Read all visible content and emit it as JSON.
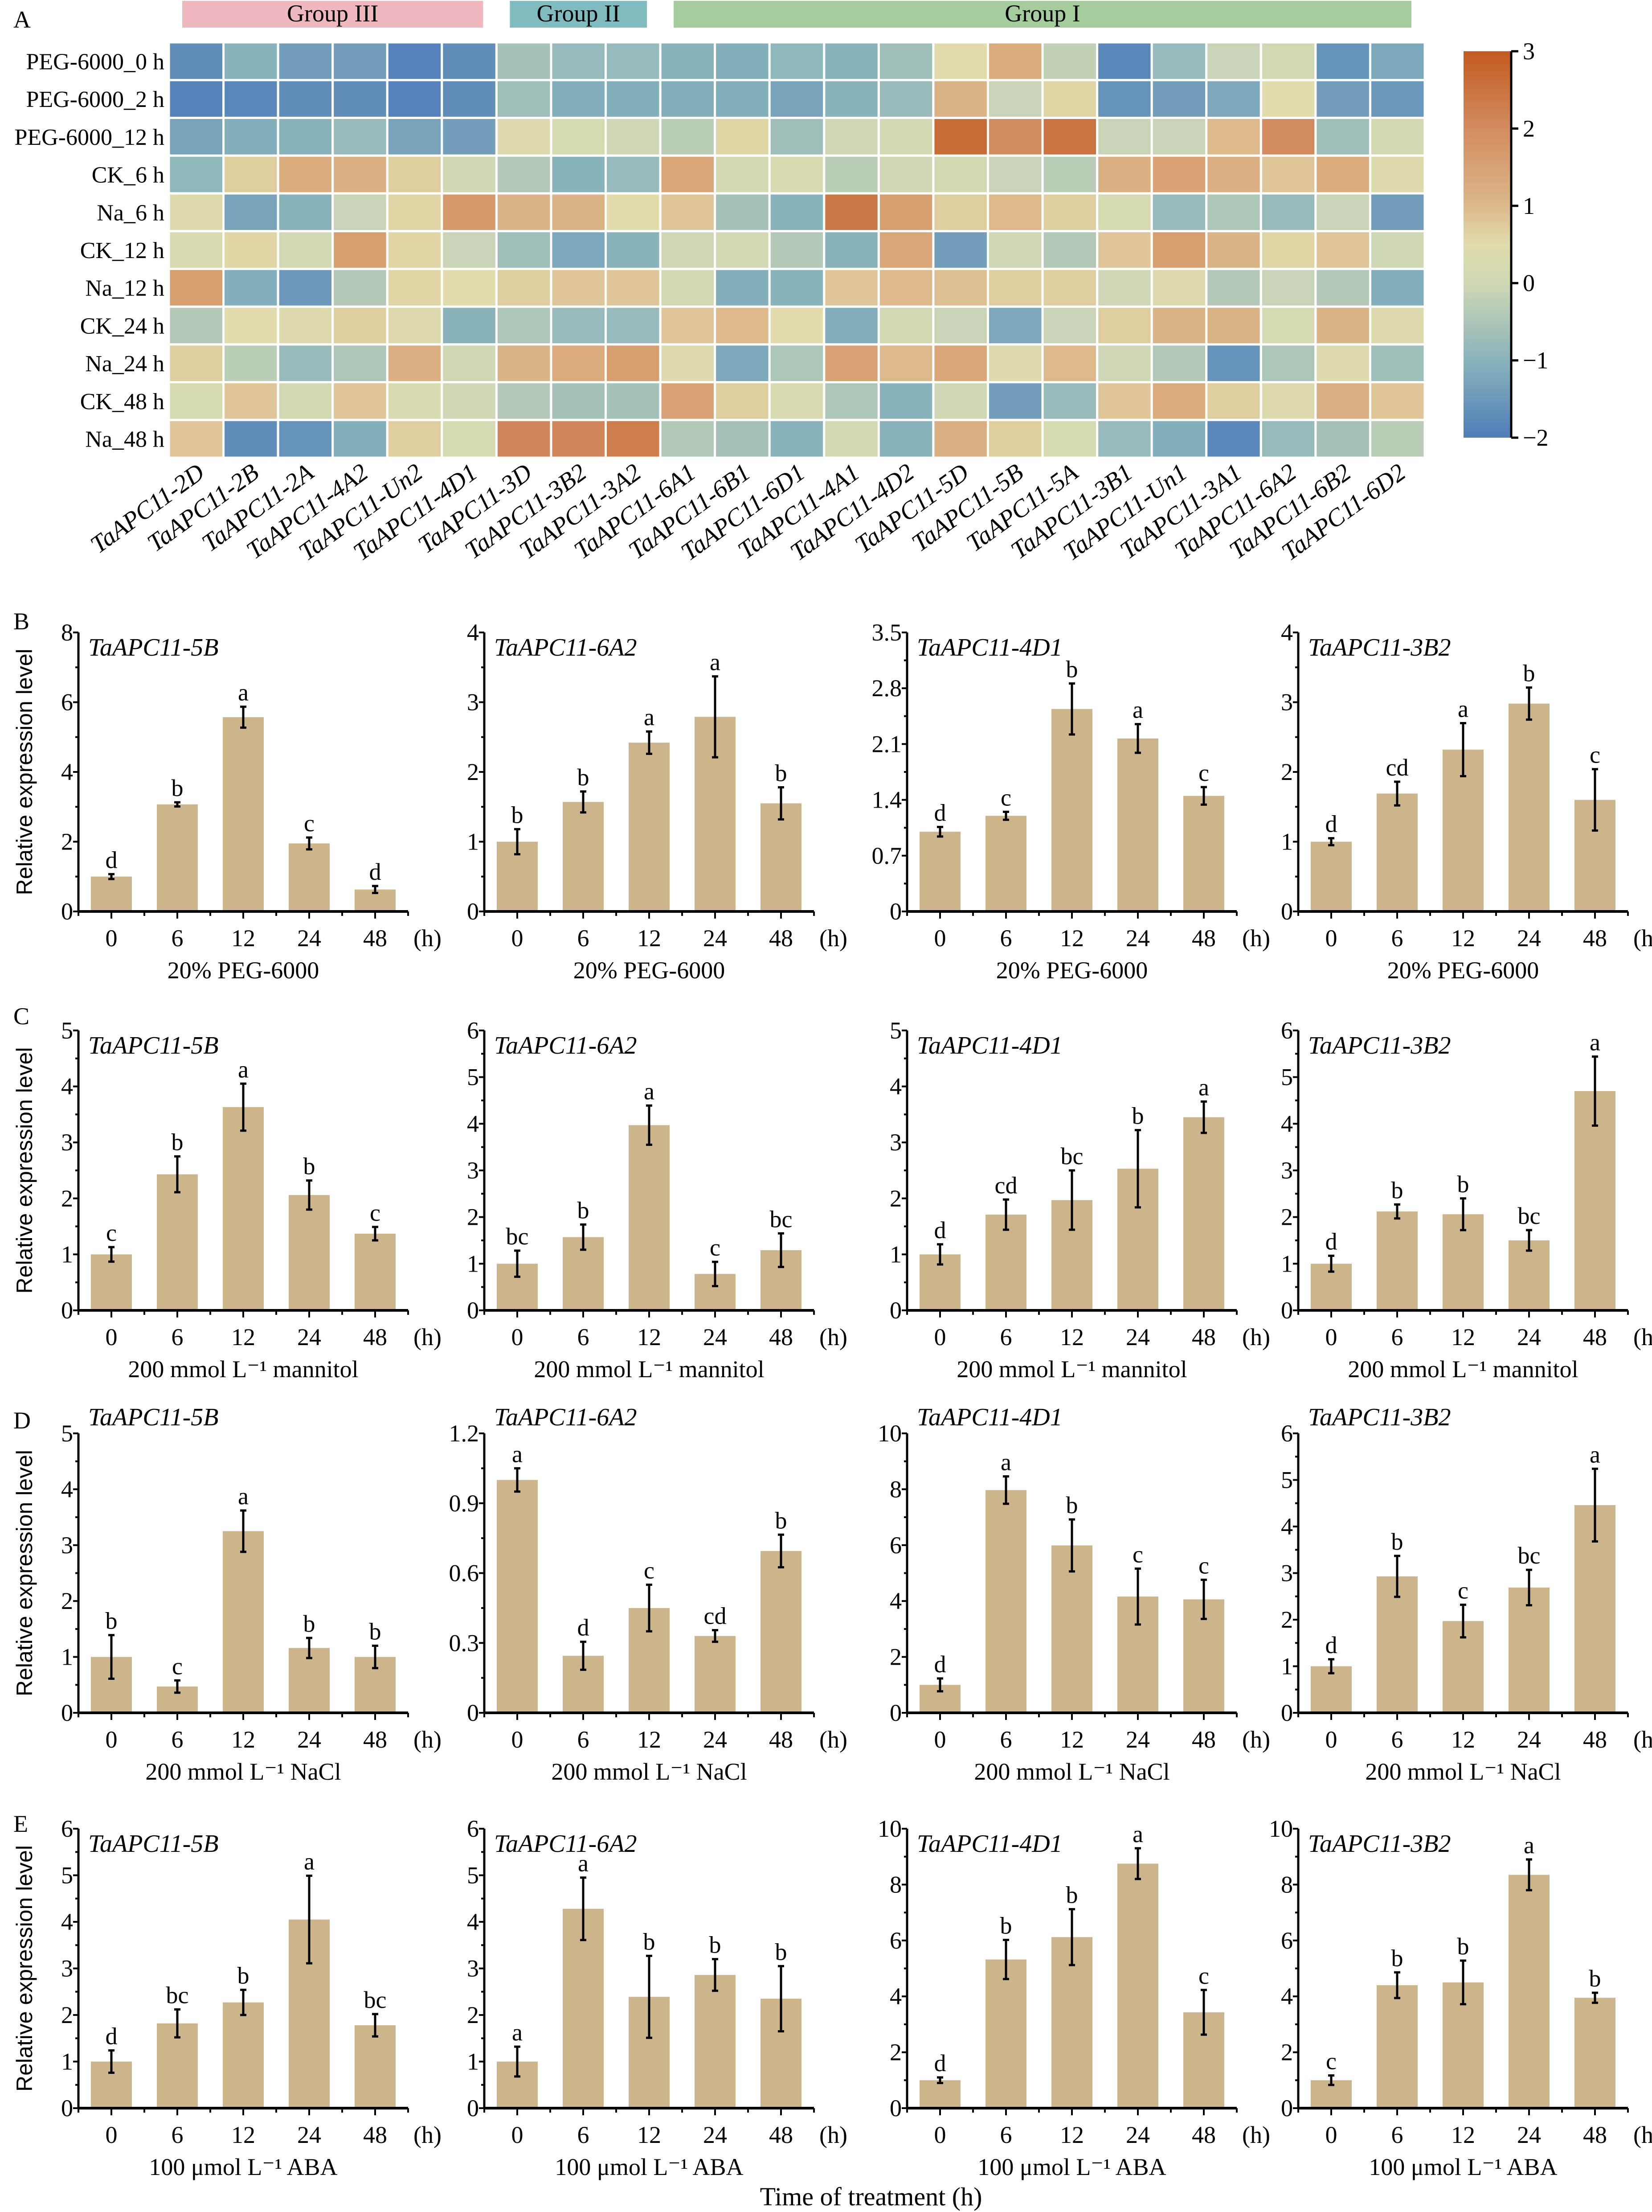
{
  "panel_labels": [
    "A",
    "B",
    "C",
    "D",
    "E"
  ],
  "footer": {
    "xlabel": "Time of treatment (h)"
  },
  "chart_data": [
    {
      "type": "heatmap",
      "rows": [
        "PEG-6000_0 h",
        "PEG-6000_2 h",
        "PEG-6000_12 h",
        "CK_6 h",
        "Na_6 h",
        "CK_12 h",
        "Na_12 h",
        "CK_24 h",
        "Na_24 h",
        "CK_48 h",
        "Na_48 h"
      ],
      "columns": [
        "TaAPC11-2D",
        "TaAPC11-2B",
        "TaAPC11-2A",
        "TaAPC11-4A2",
        "TaAPC11-Un2",
        "TaAPC11-4D1",
        "TaAPC11-3D",
        "TaAPC11-3B2",
        "TaAPC11-3A2",
        "TaAPC11-6A1",
        "TaAPC11-6B1",
        "TaAPC11-6D1",
        "TaAPC11-4A1",
        "TaAPC11-4D2",
        "TaAPC11-5D",
        "TaAPC11-5B",
        "TaAPC11-5A",
        "TaAPC11-3B1",
        "TaAPC11-Un1",
        "TaAPC11-3A1",
        "TaAPC11-6A2",
        "TaAPC11-6B2",
        "TaAPC11-6D2"
      ],
      "values": [
        [
          -1.7,
          -1.0,
          -1.4,
          -1.4,
          -1.9,
          -1.7,
          -0.6,
          -0.8,
          -0.8,
          -1.0,
          -1.1,
          -0.9,
          -1.0,
          -0.7,
          0.5,
          1.3,
          -0.2,
          -1.8,
          -0.8,
          -0.1,
          0.1,
          -1.6,
          -1.2
        ],
        [
          -1.9,
          -1.8,
          -1.7,
          -1.7,
          -1.9,
          -1.7,
          -0.7,
          -1.1,
          -1.1,
          -1.1,
          -1.1,
          -1.3,
          -1.0,
          -0.8,
          1.1,
          -0.1,
          0.6,
          -1.6,
          -1.4,
          -1.2,
          0.5,
          -1.4,
          -1.5
        ],
        [
          -1.3,
          -1.1,
          -1.0,
          -0.8,
          -1.3,
          -1.4,
          0.4,
          0.2,
          0.0,
          -0.3,
          0.6,
          -0.7,
          0.0,
          0.1,
          2.6,
          2.0,
          2.5,
          -0.1,
          -0.1,
          1.0,
          2.0,
          -0.7,
          0.1
        ],
        [
          -0.9,
          0.7,
          1.3,
          1.2,
          0.7,
          0.0,
          -0.4,
          -1.0,
          -0.8,
          1.4,
          0.1,
          0.3,
          -0.3,
          0.0,
          0.1,
          -0.1,
          -0.3,
          1.2,
          1.5,
          1.2,
          0.8,
          1.3,
          0.4
        ],
        [
          0.4,
          -1.3,
          -1.0,
          -0.1,
          0.6,
          1.7,
          1.1,
          1.1,
          0.5,
          0.8,
          -0.6,
          -1.0,
          2.4,
          1.6,
          0.7,
          1.0,
          0.7,
          0.2,
          -0.8,
          -0.5,
          -0.8,
          -0.1,
          -1.4
        ],
        [
          0.3,
          0.6,
          0.1,
          1.6,
          0.6,
          -0.1,
          -0.7,
          -1.2,
          -1.0,
          0.0,
          0.1,
          -0.4,
          -1.0,
          1.4,
          -1.4,
          0.0,
          -0.4,
          0.8,
          1.6,
          1.1,
          0.6,
          0.8,
          0.0
        ],
        [
          1.6,
          -1.1,
          -1.5,
          -0.4,
          0.6,
          0.5,
          0.7,
          0.8,
          0.8,
          0.1,
          -1.1,
          -1.0,
          0.8,
          1.0,
          0.9,
          0.7,
          0.7,
          0.0,
          0.4,
          -0.4,
          -0.1,
          -0.4,
          -1.1
        ],
        [
          -0.4,
          0.5,
          0.4,
          0.7,
          0.4,
          -1.0,
          -0.5,
          -0.8,
          -0.8,
          0.8,
          1.0,
          0.5,
          -1.1,
          0.1,
          -0.1,
          -1.2,
          -0.1,
          0.7,
          1.1,
          1.1,
          0.2,
          1.1,
          0.4
        ],
        [
          0.7,
          -0.3,
          -0.8,
          -0.5,
          1.2,
          0.0,
          1.1,
          1.3,
          1.6,
          0.4,
          -1.2,
          -0.5,
          1.5,
          1.0,
          1.4,
          0.4,
          1.0,
          0.0,
          -0.4,
          -1.6,
          -0.5,
          0.4,
          -0.7
        ],
        [
          0.2,
          0.8,
          0.1,
          0.8,
          0.3,
          0.0,
          -0.4,
          -0.6,
          -0.6,
          1.5,
          0.7,
          0.3,
          -0.5,
          -1.0,
          0.0,
          -1.4,
          -0.8,
          0.8,
          1.3,
          0.7,
          0.4,
          1.2,
          0.8
        ],
        [
          0.8,
          -1.7,
          -1.6,
          -1.1,
          0.7,
          0.2,
          2.1,
          2.1,
          2.3,
          -0.4,
          -0.6,
          -1.0,
          0.1,
          -1.0,
          1.2,
          0.7,
          0.2,
          -0.8,
          -1.1,
          -1.8,
          -0.8,
          -0.6,
          -0.3
        ]
      ],
      "groups": [
        {
          "name": "Group III",
          "first_column": "TaAPC11-2D",
          "last_column": "TaAPC11-4D1",
          "color": "#efb8bf"
        },
        {
          "name": "Group II",
          "first_column": "TaAPC11-3D",
          "last_column": "TaAPC11-3A2",
          "color": "#7fbbbf"
        },
        {
          "name": "Group I",
          "first_column": "TaAPC11-6A1",
          "last_column": "TaAPC11-6D2",
          "color": "#a5cc9c"
        }
      ],
      "colorbar": {
        "range": [
          -2,
          3
        ],
        "ticks": [
          "3",
          "2",
          "1",
          "0",
          "−1",
          "−2"
        ],
        "colors": [
          "#4f7dba",
          "#89b3bb",
          "#cfd8b4",
          "#e0dcac",
          "#dcb88a",
          "#d38c5f",
          "#c25a20"
        ]
      }
    },
    {
      "type": "bar",
      "panel": "B",
      "title": "TaAPC11-5B",
      "ylabel": "Relative expression level",
      "xlabel": "20% PEG-6000",
      "unit": "(h)",
      "categories": [
        "0",
        "6",
        "12",
        "24",
        "48"
      ],
      "values": [
        1.0,
        3.07,
        5.57,
        1.95,
        0.63
      ],
      "errors": [
        0.07,
        0.06,
        0.3,
        0.17,
        0.1
      ],
      "letters": [
        "d",
        "b",
        "a",
        "c",
        "d"
      ],
      "ylim": [
        0,
        8
      ],
      "yticks": [
        "0",
        "2",
        "4",
        "6",
        "8"
      ]
    },
    {
      "type": "bar",
      "panel": "B",
      "title": "TaAPC11-6A2",
      "xlabel": "20% PEG-6000",
      "unit": "(h)",
      "categories": [
        "0",
        "6",
        "12",
        "24",
        "48"
      ],
      "values": [
        1.0,
        1.57,
        2.42,
        2.79,
        1.55
      ],
      "errors": [
        0.18,
        0.15,
        0.16,
        0.58,
        0.23
      ],
      "letters": [
        "b",
        "b",
        "a",
        "a",
        "b"
      ],
      "ylim": [
        0,
        4
      ],
      "yticks": [
        "0",
        "1",
        "2",
        "3",
        "4"
      ]
    },
    {
      "type": "bar",
      "panel": "B",
      "title": "TaAPC11-4D1",
      "xlabel": "20% PEG-6000",
      "unit": "(h)",
      "categories": [
        "0",
        "6",
        "12",
        "24",
        "48"
      ],
      "values": [
        1.0,
        1.2,
        2.54,
        2.17,
        1.45
      ],
      "errors": [
        0.06,
        0.05,
        0.32,
        0.18,
        0.11
      ],
      "letters": [
        "d",
        "c",
        "b",
        "a",
        "c"
      ],
      "ylim": [
        0,
        3.5
      ],
      "yticks": [
        "0",
        "0.7",
        "1.4",
        "2.1",
        "2.8",
        "3.5"
      ]
    },
    {
      "type": "bar",
      "panel": "B",
      "title": "TaAPC11-3B2",
      "xlabel": "20% PEG-6000",
      "unit": "(h)",
      "categories": [
        "0",
        "6",
        "12",
        "24",
        "48"
      ],
      "values": [
        1.0,
        1.69,
        2.32,
        2.98,
        1.6
      ],
      "errors": [
        0.05,
        0.17,
        0.38,
        0.23,
        0.44
      ],
      "letters": [
        "d",
        "cd",
        "a",
        "b",
        "c"
      ],
      "ylim": [
        0,
        4
      ],
      "yticks": [
        "0",
        "1",
        "2",
        "3",
        "4"
      ]
    },
    {
      "type": "bar",
      "panel": "C",
      "title": "TaAPC11-5B",
      "ylabel": "Relative expression level",
      "xlabel": "200 mmol L⁻¹ mannitol",
      "unit": "(h)",
      "categories": [
        "0",
        "6",
        "12",
        "24",
        "48"
      ],
      "values": [
        1.0,
        2.43,
        3.63,
        2.06,
        1.37
      ],
      "errors": [
        0.13,
        0.32,
        0.42,
        0.26,
        0.12
      ],
      "letters": [
        "c",
        "b",
        "a",
        "b",
        "c"
      ],
      "ylim": [
        0,
        5
      ],
      "yticks": [
        "0",
        "1",
        "2",
        "3",
        "4",
        "5"
      ]
    },
    {
      "type": "bar",
      "panel": "C",
      "title": "TaAPC11-6A2",
      "xlabel": "200 mmol L⁻¹ mannitol",
      "unit": "(h)",
      "categories": [
        "0",
        "6",
        "12",
        "24",
        "48"
      ],
      "values": [
        1.0,
        1.57,
        3.97,
        0.78,
        1.29
      ],
      "errors": [
        0.28,
        0.27,
        0.42,
        0.26,
        0.36
      ],
      "letters": [
        "bc",
        "b",
        "a",
        "c",
        "bc"
      ],
      "ylim": [
        0,
        6
      ],
      "yticks": [
        "0",
        "1",
        "2",
        "3",
        "4",
        "5",
        "6"
      ]
    },
    {
      "type": "bar",
      "panel": "C",
      "title": "TaAPC11-4D1",
      "xlabel": "200 mmol L⁻¹ mannitol",
      "unit": "(h)",
      "categories": [
        "0",
        "6",
        "12",
        "24",
        "48"
      ],
      "values": [
        1.0,
        1.71,
        1.97,
        2.53,
        3.45
      ],
      "errors": [
        0.18,
        0.27,
        0.53,
        0.69,
        0.28
      ],
      "letters": [
        "d",
        "cd",
        "bc",
        "b",
        "a"
      ],
      "ylim": [
        0,
        5
      ],
      "yticks": [
        "0",
        "1",
        "2",
        "3",
        "4",
        "5"
      ]
    },
    {
      "type": "bar",
      "panel": "C",
      "title": "TaAPC11-3B2",
      "xlabel": "200 mmol L⁻¹ mannitol",
      "unit": "(h)",
      "categories": [
        "0",
        "6",
        "12",
        "24",
        "48"
      ],
      "values": [
        1.0,
        2.12,
        2.06,
        1.5,
        4.7
      ],
      "errors": [
        0.17,
        0.15,
        0.34,
        0.22,
        0.74
      ],
      "letters": [
        "d",
        "b",
        "b",
        "bc",
        "a"
      ],
      "ylim": [
        0,
        6
      ],
      "yticks": [
        "0",
        "1",
        "2",
        "3",
        "4",
        "5",
        "6"
      ]
    },
    {
      "type": "bar",
      "panel": "D",
      "title": "TaAPC11-5B",
      "ylabel": "Relative expression level",
      "xlabel": "200 mmol L⁻¹ NaCl",
      "unit": "(h)",
      "categories": [
        "0",
        "6",
        "12",
        "24",
        "48"
      ],
      "values": [
        1.0,
        0.47,
        3.25,
        1.16,
        1.0
      ],
      "errors": [
        0.39,
        0.11,
        0.37,
        0.18,
        0.2
      ],
      "letters": [
        "b",
        "c",
        "a",
        "b",
        "b"
      ],
      "ylim": [
        0,
        5
      ],
      "yticks": [
        "0",
        "1",
        "2",
        "3",
        "4",
        "5"
      ]
    },
    {
      "type": "bar",
      "panel": "D",
      "title": "TaAPC11-6A2",
      "xlabel": "200 mmol L⁻¹ NaCl",
      "unit": "(h)",
      "categories": [
        "0",
        "6",
        "12",
        "24",
        "48"
      ],
      "values": [
        1.0,
        0.245,
        0.45,
        0.33,
        0.695
      ],
      "errors": [
        0.05,
        0.06,
        0.1,
        0.025,
        0.07
      ],
      "letters": [
        "a",
        "d",
        "c",
        "cd",
        "b"
      ],
      "ylim": [
        0,
        1.2
      ],
      "yticks": [
        "0",
        "0.3",
        "0.6",
        "0.9",
        "1.2"
      ]
    },
    {
      "type": "bar",
      "panel": "D",
      "title": "TaAPC11-4D1",
      "xlabel": "200 mmol L⁻¹ NaCl",
      "unit": "(h)",
      "categories": [
        "0",
        "6",
        "12",
        "24",
        "48"
      ],
      "values": [
        1.0,
        7.97,
        5.99,
        4.16,
        4.06
      ],
      "errors": [
        0.23,
        0.49,
        0.93,
        1.0,
        0.7
      ],
      "letters": [
        "d",
        "a",
        "b",
        "c",
        "c"
      ],
      "ylim": [
        0,
        10
      ],
      "yticks": [
        "0",
        "2",
        "4",
        "6",
        "8",
        "10"
      ]
    },
    {
      "type": "bar",
      "panel": "D",
      "title": "TaAPC11-3B2",
      "xlabel": "200 mmol L⁻¹ NaCl",
      "unit": "(h)",
      "categories": [
        "0",
        "6",
        "12",
        "24",
        "48"
      ],
      "values": [
        1.0,
        2.93,
        1.97,
        2.69,
        4.46
      ],
      "errors": [
        0.15,
        0.44,
        0.35,
        0.38,
        0.78
      ],
      "letters": [
        "d",
        "b",
        "c",
        "bc",
        "a"
      ],
      "ylim": [
        0,
        6
      ],
      "yticks": [
        "0",
        "1",
        "2",
        "3",
        "4",
        "5",
        "6"
      ]
    },
    {
      "type": "bar",
      "panel": "E",
      "title": "TaAPC11-5B",
      "ylabel": "Relative expression level",
      "xlabel": "100 μmol L⁻¹ ABA",
      "unit": "(h)",
      "categories": [
        "0",
        "6",
        "12",
        "24",
        "48"
      ],
      "values": [
        1.0,
        1.82,
        2.27,
        4.05,
        1.78
      ],
      "errors": [
        0.24,
        0.3,
        0.27,
        0.94,
        0.24
      ],
      "letters": [
        "d",
        "bc",
        "b",
        "a",
        "bc"
      ],
      "ylim": [
        0,
        6
      ],
      "yticks": [
        "0",
        "1",
        "2",
        "3",
        "4",
        "5",
        "6"
      ]
    },
    {
      "type": "bar",
      "panel": "E",
      "title": "TaAPC11-6A2",
      "xlabel": "100 μmol L⁻¹ ABA",
      "unit": "(h)",
      "categories": [
        "0",
        "6",
        "12",
        "24",
        "48"
      ],
      "values": [
        1.0,
        4.28,
        2.39,
        2.86,
        2.35
      ],
      "errors": [
        0.32,
        0.67,
        0.88,
        0.34,
        0.7
      ],
      "letters": [
        "a",
        "a",
        "b",
        "b",
        "b"
      ],
      "ylim": [
        0,
        6
      ],
      "yticks": [
        "0",
        "1",
        "2",
        "3",
        "4",
        "5",
        "6"
      ]
    },
    {
      "type": "bar",
      "panel": "E",
      "title": "TaAPC11-4D1",
      "xlabel": "100 μmol L⁻¹ ABA",
      "unit": "(h)",
      "categories": [
        "0",
        "6",
        "12",
        "24",
        "48"
      ],
      "values": [
        1.0,
        5.32,
        6.12,
        8.75,
        3.43
      ],
      "errors": [
        0.1,
        0.7,
        1.0,
        0.55,
        0.8
      ],
      "letters": [
        "d",
        "b",
        "b",
        "a",
        "c"
      ],
      "ylim": [
        0,
        10
      ],
      "yticks": [
        "0",
        "2",
        "4",
        "6",
        "8",
        "10"
      ]
    },
    {
      "type": "bar",
      "panel": "E",
      "title": "TaAPC11-3B2",
      "xlabel": "100 μmol L⁻¹ ABA",
      "unit": "(h)",
      "categories": [
        "0",
        "6",
        "12",
        "24",
        "48"
      ],
      "values": [
        1.0,
        4.4,
        4.5,
        8.35,
        3.95
      ],
      "errors": [
        0.17,
        0.46,
        0.78,
        0.55,
        0.18
      ],
      "letters": [
        "c",
        "b",
        "b",
        "a",
        "b"
      ],
      "ylim": [
        0,
        10
      ],
      "yticks": [
        "0",
        "2",
        "4",
        "6",
        "8",
        "10"
      ]
    }
  ]
}
